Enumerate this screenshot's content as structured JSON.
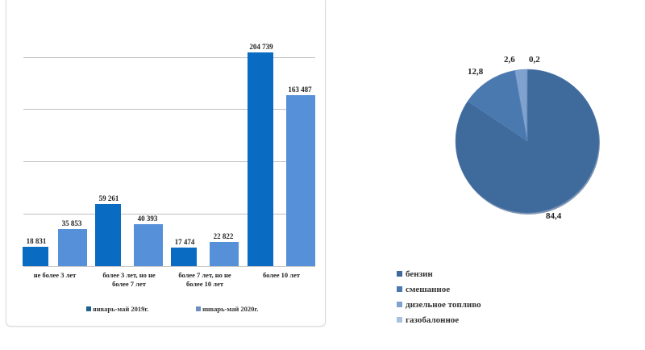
{
  "chart_data": [
    {
      "type": "bar",
      "title": "",
      "xlabel": "",
      "ylabel": "",
      "categories": [
        "не более 3 лет",
        "более 3 лет, но не более 7 лет",
        "более 7 лет, но не более 10 лет",
        "более 10 лет"
      ],
      "series": [
        {
          "name": "январь-май 2019г.",
          "values": [
            18831,
            59261,
            17474,
            204739
          ],
          "color": "#0a6bc2"
        },
        {
          "name": "январь-май 2020г.",
          "values": [
            35853,
            40393,
            22822,
            163487
          ],
          "color": "#5590d8"
        }
      ],
      "value_labels": {
        "s1": [
          "18 831",
          "59 261",
          "17 474",
          "204 739"
        ],
        "s2": [
          "35 853",
          "40 393",
          "22 822",
          "163 487"
        ]
      },
      "category_lines": [
        [
          "не более 3 лет",
          ""
        ],
        [
          "более 3 лет, но не",
          "более 7 лет"
        ],
        [
          "более 7 лет, но не",
          "более 10 лет"
        ],
        [
          "более 10 лет",
          ""
        ]
      ],
      "grid": true,
      "legend_position": "bottom"
    },
    {
      "type": "pie",
      "title": "",
      "categories": [
        "бензин",
        "смешанное",
        "дизельное топливо",
        "газобалонное"
      ],
      "values": [
        84.4,
        12.8,
        2.6,
        0.2
      ],
      "value_labels": [
        "84,4",
        "12,8",
        "2,6",
        "0,2"
      ],
      "colors": [
        "#3f6a9c",
        "#4a79b0",
        "#7fa2cf",
        "#a9c1e0"
      ],
      "legend_position": "bottom-left"
    }
  ]
}
